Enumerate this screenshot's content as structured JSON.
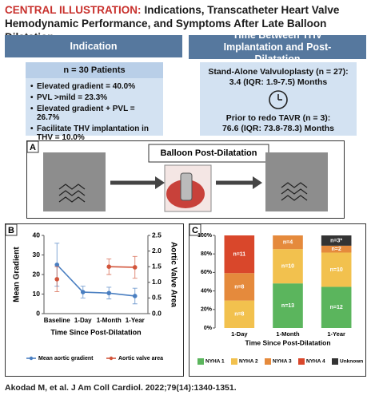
{
  "header": {
    "label": "CENTRAL ILLUSTRATION:",
    "title": "Indications, Transcatheter Heart Valve Hemodynamic Performance, and Symptoms After Late Balloon Dilatation"
  },
  "indication": {
    "title": "Indication",
    "subtitle": "n = 30 Patients",
    "items": [
      "Elevated gradient = 40.0%",
      "PVL >mild = 23.3%",
      "Elevated gradient + PVL = 26.7%",
      "Facilitate THV implantation in THV = 10.0%"
    ]
  },
  "timing": {
    "title": "Time Between THV Implantation and Post-Dilatation",
    "groups": [
      {
        "label": "Stand-Alone Valvuloplasty (n = 27):",
        "value": "3.4 (IQR: 1.9-7.5) Months"
      },
      {
        "label": "Prior to redo TAVR (n = 3):",
        "value": "76.6 (IQR: 73.8-78.3) Months"
      }
    ]
  },
  "panel_a": {
    "label": "A",
    "title": "Balloon Post-Dilatation"
  },
  "chart_data": [
    {
      "panel": "B",
      "type": "line",
      "categories": [
        "Baseline",
        "1-Day",
        "1-Month",
        "1-Year"
      ],
      "xlabel": "Time Since Post-Dilatation",
      "ylabel": "Mean Gradient",
      "y2label": "Aortic Valve Area",
      "ylim": [
        0,
        40
      ],
      "yticks": [
        0,
        10,
        20,
        30,
        40
      ],
      "y2lim": [
        0,
        2.5
      ],
      "y2ticks": [
        {
          "value": 0,
          "label": "0.0"
        },
        0.5,
        {
          "value": 1,
          "label": "1.0"
        },
        1.5,
        {
          "value": 2,
          "label": "2.0"
        },
        2.5
      ],
      "series": [
        {
          "name": "Mean aortic gradient",
          "color": "#4a7fc1",
          "values": [
            25,
            11,
            10.5,
            9
          ],
          "errors": [
            11,
            3,
            3,
            4
          ]
        },
        {
          "name": "Aortic valve area",
          "color": "#d2553b",
          "axis": "y2",
          "values": [
            1.1,
            null,
            1.5,
            1.48
          ],
          "errors": [
            0.4,
            null,
            0.25,
            0.35
          ]
        }
      ]
    },
    {
      "panel": "C",
      "type": "bar",
      "stacked": "percent",
      "categories": [
        "1-Day",
        "1-Month",
        "1-Year"
      ],
      "xlabel": "Time Since Post-Dilatation",
      "ylim": [
        0,
        100
      ],
      "yticks": [
        {
          "value": 0,
          "label": "0%"
        },
        {
          "value": 20,
          "label": "20%"
        },
        {
          "value": 40,
          "label": "40%"
        },
        {
          "value": 60,
          "label": "60%"
        },
        {
          "value": 80,
          "label": "80%"
        },
        {
          "value": 100,
          "label": "100%"
        }
      ],
      "series": [
        {
          "name": "NYHA 1",
          "color": "#5bb55d",
          "values": [
            null,
            13,
            12
          ],
          "value_labels": [
            null,
            "n=13",
            "n=12"
          ]
        },
        {
          "name": "NYHA 2",
          "color": "#f2c14e",
          "values": [
            8,
            10,
            10
          ],
          "value_labels": [
            "n=8",
            "n=10",
            "n=10"
          ]
        },
        {
          "name": "NYHA 3",
          "color": "#e58a3c",
          "values": [
            8,
            4,
            2
          ],
          "value_labels": [
            "n=8",
            "n=4",
            "n=2"
          ]
        },
        {
          "name": "NYHA 4",
          "color": "#d9472b",
          "values": [
            11,
            null,
            null
          ],
          "value_labels": [
            "n=11",
            null,
            null
          ]
        },
        {
          "name": "Unknown",
          "color": "#333333",
          "values": [
            null,
            null,
            3
          ],
          "value_labels": [
            null,
            null,
            "n=3*"
          ]
        }
      ]
    }
  ],
  "citation": "Akodad M, et al. J Am Coll Cardiol. 2022;79(14):1340-1351."
}
